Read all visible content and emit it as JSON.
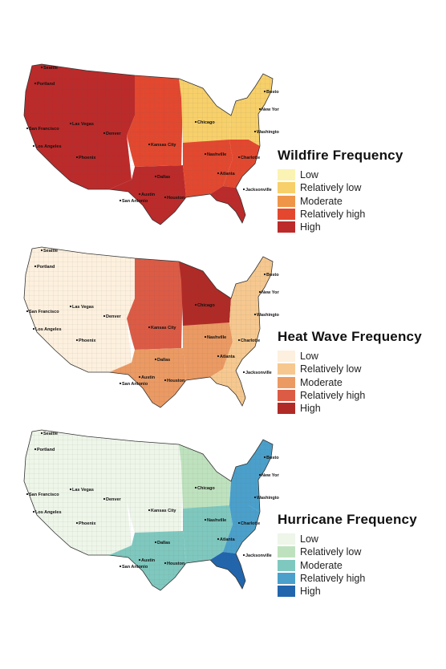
{
  "maps": [
    {
      "title": "Wildfire Frequency",
      "classes": [
        "Low",
        "Relatively low",
        "Moderate",
        "Relatively high",
        "High"
      ],
      "colors": [
        "#fbf3b3",
        "#f7d06a",
        "#ee9548",
        "#e3482f",
        "#bc2a2a"
      ],
      "regions": {
        "west": 4,
        "plains": 3,
        "midwest": 1,
        "south": 3,
        "southeast": 3,
        "florida": 4,
        "northeast": 1,
        "texas": 4
      }
    },
    {
      "title": "Heat Wave Frequency",
      "classes": [
        "Low",
        "Relatively low",
        "Moderate",
        "Relatively high",
        "High"
      ],
      "colors": [
        "#fdf0de",
        "#f6c88f",
        "#eb9a63",
        "#dc5b45",
        "#b02a26"
      ],
      "regions": {
        "west": 0,
        "plains": 3,
        "midwest": 4,
        "south": 2,
        "southeast": 1,
        "florida": 1,
        "northeast": 1,
        "texas": 2
      }
    },
    {
      "title": "Hurricane Frequency",
      "classes": [
        "Low",
        "Relatively low",
        "Moderate",
        "Relatively high",
        "High"
      ],
      "colors": [
        "#eef5e9",
        "#bfe2be",
        "#7fc8bf",
        "#4aa0cb",
        "#2165ad"
      ],
      "regions": {
        "west": 0,
        "plains": 0,
        "midwest": 1,
        "south": 2,
        "southeast": 3,
        "florida": 4,
        "northeast": 3,
        "texas": 2
      }
    }
  ],
  "cities": [
    "Seattle",
    "Portland",
    "San Francisco",
    "Las Vegas",
    "Los Angeles",
    "Phoenix",
    "Denver",
    "Kansas City",
    "Dallas",
    "Austin",
    "San Antonio",
    "Houston",
    "Chicago",
    "Nashville",
    "Atlanta",
    "Charlotte",
    "Jacksonville",
    "Washington",
    "New York",
    "Boston"
  ]
}
